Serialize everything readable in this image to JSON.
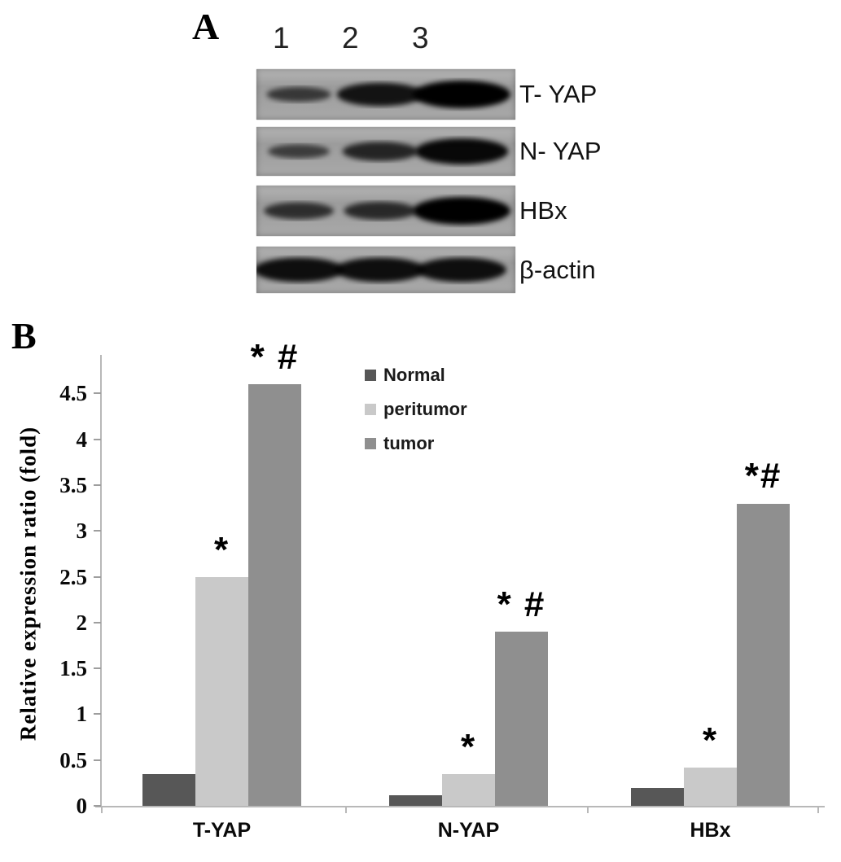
{
  "panel_a": {
    "label": "A",
    "lane_numbers": [
      "1",
      "2",
      "3"
    ],
    "rows": [
      {
        "label": "T- YAP",
        "band_intensities": [
          0.4,
          0.8,
          1.0
        ]
      },
      {
        "label": "N- YAP",
        "band_intensities": [
          0.35,
          0.6,
          0.92
        ]
      },
      {
        "label": "HBx",
        "band_intensities": [
          0.5,
          0.55,
          1.0
        ]
      },
      {
        "label": "β-actin",
        "band_intensities": [
          0.85,
          0.85,
          0.85
        ]
      }
    ]
  },
  "panel_b": {
    "label": "B"
  },
  "chart_data": {
    "type": "bar",
    "title": "",
    "xlabel": "",
    "ylabel": "Relative expression ratio (fold)",
    "ylim": [
      0,
      4.85
    ],
    "yticks": [
      0,
      0.5,
      1,
      1.5,
      2,
      2.5,
      3,
      3.5,
      4,
      4.5
    ],
    "ytick_labels": [
      "0",
      "0.5",
      "1",
      "1.5",
      "2",
      "2.5",
      "3",
      "3.5",
      "4",
      "4.5"
    ],
    "categories": [
      "T-YAP",
      "N-YAP",
      "HBx"
    ],
    "series": [
      {
        "name": "Normal",
        "color": "#575757",
        "values": [
          0.35,
          0.12,
          0.2
        ],
        "annotations": [
          "",
          "",
          ""
        ]
      },
      {
        "name": "peritumor",
        "color": "#c9c9c9",
        "values": [
          2.5,
          0.35,
          0.42
        ],
        "annotations": [
          "*",
          "*",
          "*"
        ]
      },
      {
        "name": "tumor",
        "color": "#8f8f8f",
        "values": [
          4.6,
          1.9,
          3.3
        ],
        "annotations": [
          "* #",
          "* #",
          "*#"
        ]
      }
    ],
    "legend": {
      "position": "top-center",
      "entries": [
        "Normal",
        "peritumor",
        "tumor"
      ]
    },
    "grid": false
  }
}
